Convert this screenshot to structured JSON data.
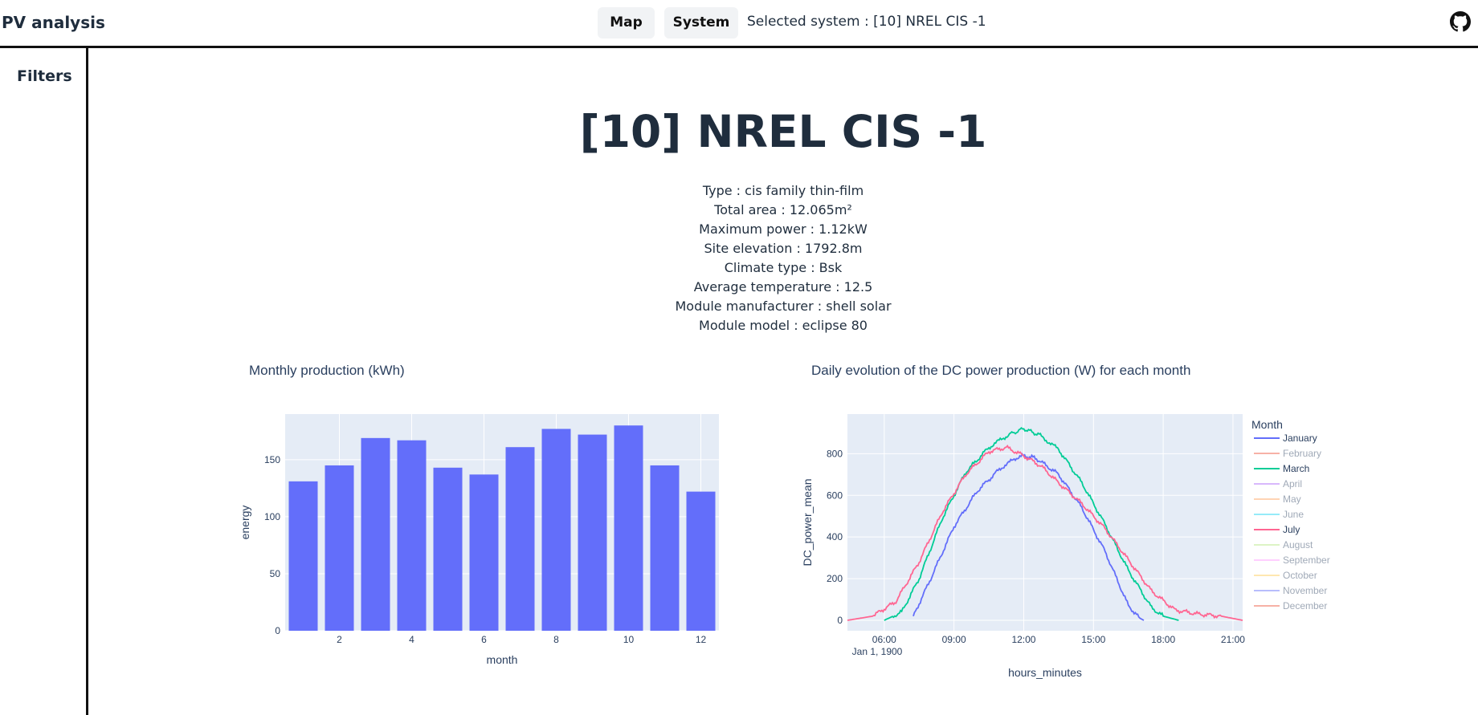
{
  "header": {
    "app_title": "PV analysis",
    "nav": [
      {
        "label": "Map"
      },
      {
        "label": "System"
      }
    ],
    "selected_system": "Selected system : [10] NREL CIS -1"
  },
  "sidebar": {
    "title": "Filters"
  },
  "system": {
    "title": "[10] NREL CIS -1",
    "info": [
      "Type : cis family thin-film",
      "Total area : 12.065m²",
      "Maximum power : 1.12kW",
      "Site elevation : 1792.8m",
      "Climate type : Bsk",
      "Average temperature : 12.5",
      "Module manufacturer : shell solar",
      "Module model : eclipse 80"
    ]
  },
  "colors": {
    "plot_bg": "#e5ecf6",
    "bar": "#636efa",
    "text": "#2a3f5f"
  },
  "chart_data": [
    {
      "type": "bar",
      "title": "Monthly production (kWh)",
      "xlabel": "month",
      "ylabel": "energy",
      "categories": [
        1,
        2,
        3,
        4,
        5,
        6,
        7,
        8,
        9,
        10,
        11,
        12
      ],
      "values": [
        131,
        145,
        169,
        167,
        143,
        137,
        161,
        177,
        172,
        180,
        145,
        122
      ],
      "x_ticks": [
        "2",
        "4",
        "6",
        "8",
        "10",
        "12"
      ],
      "y_ticks": [
        "0",
        "50",
        "100",
        "150"
      ],
      "ylim": [
        0,
        190
      ]
    },
    {
      "type": "line",
      "title": "Daily evolution of the DC power production (W) for each month",
      "xlabel": "hours_minutes",
      "ylabel": "DC_power_mean",
      "x_ticks": [
        "06:00",
        "09:00",
        "12:00",
        "15:00",
        "18:00",
        "21:00"
      ],
      "x_sub_label": "Jan 1, 1900",
      "y_ticks": [
        "0",
        "200",
        "400",
        "600",
        "800"
      ],
      "xlim": [
        "04:25",
        "21:25"
      ],
      "ylim": [
        -50,
        990
      ],
      "legend_title": "Month",
      "legend": [
        {
          "name": "January",
          "color": "#636efa",
          "active": true
        },
        {
          "name": "February",
          "color": "#ef553b",
          "active": false
        },
        {
          "name": "March",
          "color": "#00cc96",
          "active": true
        },
        {
          "name": "April",
          "color": "#ab63fa",
          "active": false
        },
        {
          "name": "May",
          "color": "#ffa15a",
          "active": false
        },
        {
          "name": "June",
          "color": "#19d3f3",
          "active": false
        },
        {
          "name": "July",
          "color": "#ff6692",
          "active": true
        },
        {
          "name": "August",
          "color": "#b6e880",
          "active": false
        },
        {
          "name": "September",
          "color": "#ff97ff",
          "active": false
        },
        {
          "name": "October",
          "color": "#fecb52",
          "active": false
        },
        {
          "name": "November",
          "color": "#636efa",
          "active": false
        },
        {
          "name": "December",
          "color": "#ef553b",
          "active": false
        }
      ],
      "series": [
        {
          "name": "January",
          "color": "#636efa",
          "x": [
            "07:15",
            "08:00",
            "09:00",
            "10:00",
            "11:00",
            "11:50",
            "12:30",
            "13:30",
            "14:30",
            "15:30",
            "16:30",
            "17:00",
            "17:10"
          ],
          "y": [
            20,
            200,
            450,
            620,
            730,
            790,
            780,
            700,
            540,
            330,
            70,
            10,
            0
          ]
        },
        {
          "name": "March",
          "color": "#00cc96",
          "x": [
            "06:00",
            "06:45",
            "07:30",
            "08:30",
            "09:30",
            "10:30",
            "11:20",
            "12:00",
            "12:40",
            "13:30",
            "14:30",
            "15:30",
            "16:30",
            "17:30",
            "18:00",
            "18:40"
          ],
          "y": [
            0,
            40,
            200,
            490,
            710,
            830,
            890,
            920,
            890,
            820,
            660,
            460,
            240,
            60,
            20,
            0
          ]
        },
        {
          "name": "July",
          "color": "#ff6692",
          "x": [
            "04:25",
            "05:30",
            "06:30",
            "07:30",
            "08:30",
            "09:30",
            "10:30",
            "11:15",
            "12:00",
            "12:45",
            "13:30",
            "14:30",
            "15:30",
            "16:30",
            "17:30",
            "18:30",
            "19:30",
            "20:30",
            "21:25"
          ],
          "y": [
            0,
            20,
            90,
            280,
            520,
            700,
            810,
            830,
            790,
            740,
            660,
            560,
            440,
            290,
            140,
            50,
            30,
            20,
            0
          ]
        }
      ]
    }
  ]
}
